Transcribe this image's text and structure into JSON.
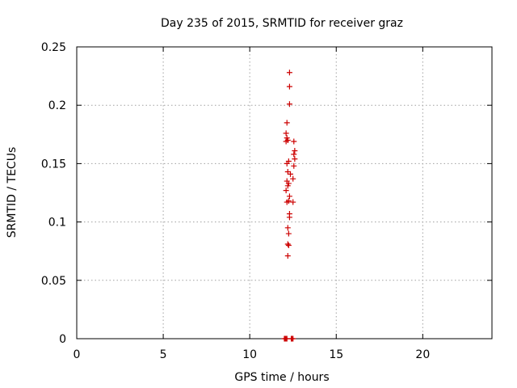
{
  "chart_data": {
    "type": "scatter",
    "title": "Day 235 of 2015, SRMTID for receiver graz",
    "xlabel": "GPS time / hours",
    "ylabel": "SRMTID / TECUs",
    "xlim": [
      0,
      24
    ],
    "ylim": [
      0,
      0.25
    ],
    "x_ticks": [
      "0",
      "5",
      "10",
      "15",
      "20"
    ],
    "x_tick_values": [
      0,
      5,
      10,
      15,
      20
    ],
    "y_ticks": [
      "0",
      "0.05",
      "0.1",
      "0.15",
      "0.2",
      "0.25"
    ],
    "y_tick_values": [
      0,
      0.05,
      0.1,
      0.15,
      0.2,
      0.25
    ],
    "grid": true,
    "marker": "plus",
    "series": [
      {
        "color": "#cc0000",
        "points": [
          [
            12.3,
            0.228
          ],
          [
            12.3,
            0.216
          ],
          [
            12.3,
            0.201
          ],
          [
            12.15,
            0.185
          ],
          [
            12.1,
            0.176
          ],
          [
            12.15,
            0.172
          ],
          [
            12.1,
            0.169
          ],
          [
            12.2,
            0.17
          ],
          [
            12.55,
            0.169
          ],
          [
            12.6,
            0.161
          ],
          [
            12.55,
            0.158
          ],
          [
            12.6,
            0.154
          ],
          [
            12.25,
            0.152
          ],
          [
            12.15,
            0.15
          ],
          [
            12.55,
            0.148
          ],
          [
            12.2,
            0.143
          ],
          [
            12.35,
            0.141
          ],
          [
            12.5,
            0.137
          ],
          [
            12.15,
            0.135
          ],
          [
            12.25,
            0.133
          ],
          [
            12.2,
            0.131
          ],
          [
            12.1,
            0.127
          ],
          [
            12.3,
            0.122
          ],
          [
            12.25,
            0.118
          ],
          [
            12.15,
            0.117
          ],
          [
            12.5,
            0.117
          ],
          [
            12.3,
            0.107
          ],
          [
            12.3,
            0.104
          ],
          [
            12.2,
            0.095
          ],
          [
            12.25,
            0.09
          ],
          [
            12.2,
            0.081
          ],
          [
            12.25,
            0.08
          ],
          [
            12.2,
            0.071
          ],
          [
            12.0,
            0.0
          ],
          [
            12.05,
            0.0
          ],
          [
            12.1,
            0.0
          ],
          [
            12.15,
            0.0
          ],
          [
            12.4,
            0.0
          ],
          [
            12.45,
            0.0
          ],
          [
            12.5,
            0.0
          ]
        ]
      }
    ]
  }
}
